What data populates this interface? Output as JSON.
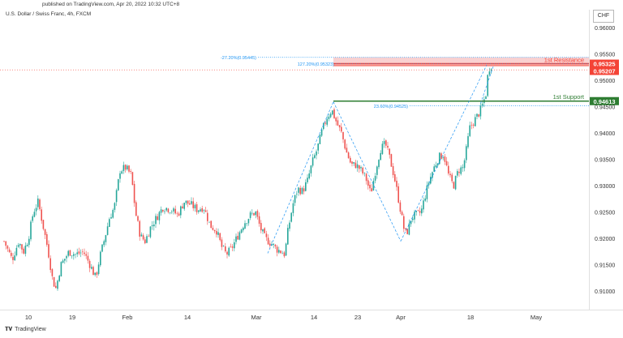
{
  "header": {
    "published": "published on TradingView.com, Apr 20, 2022 10:32 UTC+8",
    "symbol": "U.S. Dollar / Swiss Franc, 4h, FXCM",
    "currency": "CHF"
  },
  "footer": {
    "logo_text": "TradingView"
  },
  "colors": {
    "up": "#26a69a",
    "down": "#ef5350",
    "resistance": "#f44336",
    "support": "#2e7d32",
    "fib": "#2196f3"
  },
  "chart_data": {
    "type": "candlestick",
    "ylim": [
      0.9065,
      0.9635
    ],
    "y_ticks": [
      "0.91000",
      "0.91500",
      "0.92000",
      "0.92500",
      "0.93000",
      "0.93500",
      "0.94000",
      "0.94500",
      "0.95000",
      "0.95500",
      "0.96000"
    ],
    "x_ticks": [
      "10",
      "19",
      "Feb",
      "14",
      "Mar",
      "14",
      "23",
      "Apr",
      "18",
      "May"
    ],
    "price_path": [
      [
        0,
        0.9195
      ],
      [
        10,
        0.916
      ],
      [
        18,
        0.9195
      ],
      [
        24,
        0.9175
      ],
      [
        30,
        0.92
      ],
      [
        36,
        0.925
      ],
      [
        42,
        0.927
      ],
      [
        48,
        0.9225
      ],
      [
        54,
        0.918
      ],
      [
        60,
        0.912
      ],
      [
        64,
        0.9105
      ],
      [
        70,
        0.915
      ],
      [
        80,
        0.9175
      ],
      [
        88,
        0.917
      ],
      [
        98,
        0.9175
      ],
      [
        106,
        0.915
      ],
      [
        113,
        0.9125
      ],
      [
        118,
        0.9165
      ],
      [
        124,
        0.92
      ],
      [
        130,
        0.924
      ],
      [
        136,
        0.926
      ],
      [
        140,
        0.93
      ],
      [
        143,
        0.933
      ],
      [
        150,
        0.9335
      ],
      [
        157,
        0.932
      ],
      [
        162,
        0.925
      ],
      [
        168,
        0.9205
      ],
      [
        174,
        0.9195
      ],
      [
        180,
        0.922
      ],
      [
        188,
        0.924
      ],
      [
        196,
        0.926
      ],
      [
        206,
        0.9255
      ],
      [
        214,
        0.9245
      ],
      [
        222,
        0.927
      ],
      [
        230,
        0.9265
      ],
      [
        238,
        0.9255
      ],
      [
        246,
        0.926
      ],
      [
        254,
        0.9225
      ],
      [
        262,
        0.9215
      ],
      [
        268,
        0.9185
      ],
      [
        274,
        0.917
      ],
      [
        280,
        0.918
      ],
      [
        288,
        0.9205
      ],
      [
        296,
        0.923
      ],
      [
        304,
        0.9245
      ],
      [
        310,
        0.925
      ],
      [
        316,
        0.922
      ],
      [
        322,
        0.92
      ],
      [
        330,
        0.919
      ],
      [
        336,
        0.918
      ],
      [
        342,
        0.9175
      ],
      [
        346,
        0.917
      ],
      [
        350,
        0.9215
      ],
      [
        356,
        0.9265
      ],
      [
        362,
        0.9295
      ],
      [
        368,
        0.929
      ],
      [
        374,
        0.931
      ],
      [
        380,
        0.9345
      ],
      [
        386,
        0.937
      ],
      [
        392,
        0.9405
      ],
      [
        398,
        0.943
      ],
      [
        404,
        0.9445
      ],
      [
        410,
        0.942
      ],
      [
        416,
        0.94
      ],
      [
        422,
        0.9365
      ],
      [
        428,
        0.934
      ],
      [
        434,
        0.934
      ],
      [
        440,
        0.933
      ],
      [
        446,
        0.9315
      ],
      [
        452,
        0.9285
      ],
      [
        458,
        0.933
      ],
      [
        464,
        0.937
      ],
      [
        470,
        0.938
      ],
      [
        476,
        0.935
      ],
      [
        482,
        0.931
      ],
      [
        488,
        0.926
      ],
      [
        494,
        0.921
      ],
      [
        498,
        0.9215
      ],
      [
        502,
        0.924
      ],
      [
        508,
        0.9245
      ],
      [
        514,
        0.925
      ],
      [
        518,
        0.9275
      ],
      [
        524,
        0.931
      ],
      [
        530,
        0.9335
      ],
      [
        536,
        0.9355
      ],
      [
        542,
        0.936
      ],
      [
        548,
        0.932
      ],
      [
        554,
        0.93
      ],
      [
        560,
        0.933
      ],
      [
        566,
        0.9335
      ],
      [
        570,
        0.937
      ],
      [
        574,
        0.941
      ],
      [
        580,
        0.9425
      ],
      [
        586,
        0.944
      ],
      [
        590,
        0.9455
      ],
      [
        594,
        0.9475
      ],
      [
        597,
        0.952
      ],
      [
        600,
        0.953
      ],
      [
        602,
        0.9528
      ]
    ],
    "levels": [
      {
        "name": "1st Resistance",
        "value": 0.95325,
        "label": "0.95325"
      },
      {
        "name": "1st Support",
        "value": 0.94613,
        "label": "0.94613"
      }
    ],
    "current_price": {
      "value": 0.95207,
      "label": "0.95207"
    },
    "fib_levels": [
      {
        "text": "-27.20%(0.95445)",
        "value": 0.95445
      },
      {
        "text": "127.20%(0.95323)",
        "value": 0.95323
      },
      {
        "text": "23.60%(0.94525)",
        "value": 0.94525
      }
    ]
  }
}
